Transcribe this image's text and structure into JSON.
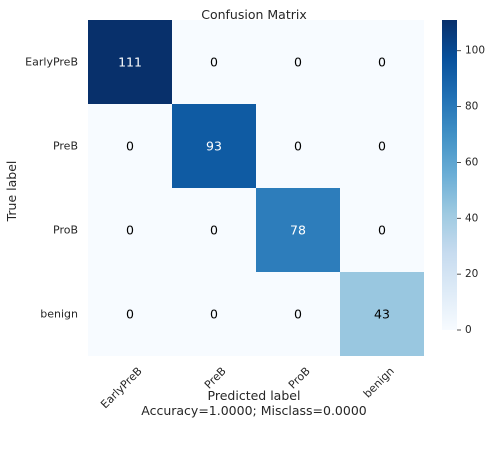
{
  "chart_data": {
    "type": "heatmap",
    "title": "Confusion Matrix",
    "xlabel": "Predicted label",
    "xlabel_sub": "Accuracy=1.0000; Misclass=0.0000",
    "ylabel": "True label",
    "x_categories": [
      "EarlyPreB",
      "PreB",
      "ProB",
      "benign"
    ],
    "y_categories": [
      "EarlyPreB",
      "PreB",
      "ProB",
      "benign"
    ],
    "values": [
      [
        111,
        0,
        0,
        0
      ],
      [
        0,
        93,
        0,
        0
      ],
      [
        0,
        0,
        78,
        0
      ],
      [
        0,
        0,
        0,
        43
      ]
    ],
    "colorbar": {
      "min": 0,
      "max": 111,
      "ticks": [
        0,
        20,
        40,
        60,
        80,
        100
      ]
    },
    "colormap": "Blues",
    "grid": false
  }
}
